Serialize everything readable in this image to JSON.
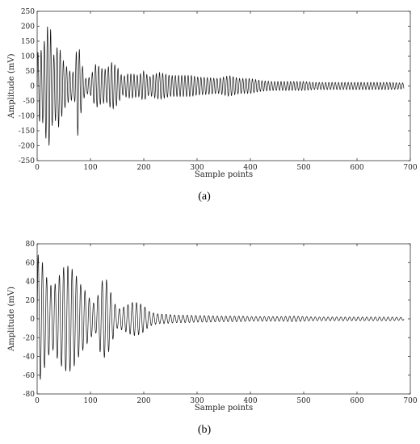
{
  "chart_data": [
    {
      "type": "line",
      "panel_label": "(a)",
      "xlabel": "Sample points",
      "ylabel": "Amplitude (mV)",
      "xlim": [
        0,
        700
      ],
      "ylim": [
        -250,
        250
      ],
      "xticks": [
        0,
        100,
        200,
        300,
        400,
        500,
        600,
        700
      ],
      "yticks": [
        250,
        200,
        150,
        100,
        50,
        0,
        -50,
        -100,
        -150,
        -200,
        -250
      ],
      "grid": false,
      "series": [
        {
          "period_samples": 6,
          "x_range": [
            0,
            688
          ],
          "envelope": {
            "x": [
              0,
              5,
              10,
              15,
              20,
              25,
              30,
              40,
              50,
              60,
              70,
              76,
              80,
              90,
              100,
              110,
              120,
              130,
              140,
              150,
              160,
              170,
              180,
              190,
              200,
              210,
              220,
              230,
              240,
              250,
              260,
              270,
              280,
              290,
              300,
              320,
              340,
              360,
              380,
              400,
              420,
              440,
              460,
              480,
              500,
              520,
              540,
              560,
              580,
              600,
              620,
              640,
              660,
              688
            ],
            "amplitude": [
              110,
              120,
              120,
              165,
              205,
              195,
              100,
              140,
              80,
              50,
              45,
              170,
              110,
              25,
              30,
              75,
              60,
              55,
              80,
              65,
              30,
              40,
              40,
              35,
              50,
              30,
              40,
              45,
              40,
              35,
              35,
              35,
              35,
              35,
              30,
              28,
              25,
              35,
              25,
              25,
              18,
              15,
              15,
              15,
              15,
              12,
              12,
              12,
              12,
              12,
              12,
              12,
              12,
              10
            ]
          }
        }
      ]
    },
    {
      "type": "line",
      "panel_label": "(b)",
      "xlabel": "Sample points",
      "ylabel": "Amplitude (mV)",
      "xlim": [
        0,
        700
      ],
      "ylim": [
        -80,
        80
      ],
      "xticks": [
        0,
        100,
        200,
        300,
        400,
        500,
        600,
        700
      ],
      "yticks": [
        80,
        60,
        40,
        20,
        0,
        -20,
        -40,
        -60,
        -80
      ],
      "grid": false,
      "series": [
        {
          "period_samples": 8,
          "x_range": [
            0,
            688
          ],
          "envelope": {
            "x": [
              0,
              5,
              10,
              20,
              30,
              40,
              50,
              60,
              70,
              80,
              90,
              100,
              110,
              120,
              130,
              140,
              150,
              160,
              170,
              180,
              190,
              200,
              210,
              220,
              230,
              240,
              260,
              280,
              300,
              320,
              340,
              360,
              380,
              400,
              420,
              440,
              460,
              480,
              500,
              520,
              540,
              560,
              580,
              600,
              620,
              640,
              660,
              688
            ],
            "amplitude": [
              70,
              66,
              60,
              40,
              33,
              45,
              55,
              57,
              50,
              38,
              30,
              20,
              15,
              40,
              42,
              25,
              10,
              12,
              15,
              18,
              17,
              14,
              8,
              6,
              5,
              5,
              4,
              4,
              3.5,
              3.5,
              3,
              3,
              3,
              2.5,
              2.5,
              2.5,
              2.5,
              3,
              2.5,
              2,
              2,
              2,
              2,
              2,
              2,
              2,
              2,
              1.5
            ]
          }
        }
      ]
    }
  ]
}
